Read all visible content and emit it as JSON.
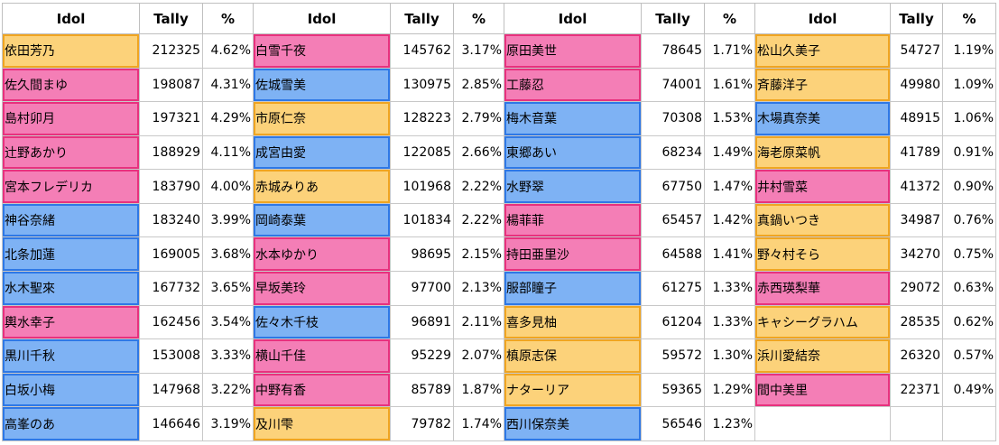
{
  "headers": {
    "idol": "Idol",
    "tally": "Tally",
    "pct": "%"
  },
  "colors": {
    "cute": "#f47eb6",
    "cool": "#7eb2f4",
    "passion": "#fcd27a"
  },
  "columns": [
    [
      {
        "name": "依田芳乃",
        "tally": "212325",
        "pct": "4.62%",
        "type": "passion"
      },
      {
        "name": "佐久間まゆ",
        "tally": "198087",
        "pct": "4.31%",
        "type": "cute"
      },
      {
        "name": "島村卯月",
        "tally": "197321",
        "pct": "4.29%",
        "type": "cute"
      },
      {
        "name": "辻野あかり",
        "tally": "188929",
        "pct": "4.11%",
        "type": "cute"
      },
      {
        "name": "宮本フレデリカ",
        "tally": "183790",
        "pct": "4.00%",
        "type": "cute"
      },
      {
        "name": "神谷奈緒",
        "tally": "183240",
        "pct": "3.99%",
        "type": "cool"
      },
      {
        "name": "北条加蓮",
        "tally": "169005",
        "pct": "3.68%",
        "type": "cool"
      },
      {
        "name": "水木聖來",
        "tally": "167732",
        "pct": "3.65%",
        "type": "cool"
      },
      {
        "name": "輿水幸子",
        "tally": "162456",
        "pct": "3.54%",
        "type": "cute"
      },
      {
        "name": "黒川千秋",
        "tally": "153008",
        "pct": "3.33%",
        "type": "cool"
      },
      {
        "name": "白坂小梅",
        "tally": "147968",
        "pct": "3.22%",
        "type": "cool"
      },
      {
        "name": "高峯のあ",
        "tally": "146646",
        "pct": "3.19%",
        "type": "cool"
      }
    ],
    [
      {
        "name": "白雪千夜",
        "tally": "145762",
        "pct": "3.17%",
        "type": "cute"
      },
      {
        "name": "佐城雪美",
        "tally": "130975",
        "pct": "2.85%",
        "type": "cool"
      },
      {
        "name": "市原仁奈",
        "tally": "128223",
        "pct": "2.79%",
        "type": "passion"
      },
      {
        "name": "成宮由愛",
        "tally": "122085",
        "pct": "2.66%",
        "type": "cool"
      },
      {
        "name": "赤城みりあ",
        "tally": "101968",
        "pct": "2.22%",
        "type": "passion"
      },
      {
        "name": "岡崎泰葉",
        "tally": "101834",
        "pct": "2.22%",
        "type": "cool"
      },
      {
        "name": "水本ゆかり",
        "tally": "98695",
        "pct": "2.15%",
        "type": "cute"
      },
      {
        "name": "早坂美玲",
        "tally": "97700",
        "pct": "2.13%",
        "type": "cute"
      },
      {
        "name": "佐々木千枝",
        "tally": "96891",
        "pct": "2.11%",
        "type": "cool"
      },
      {
        "name": "横山千佳",
        "tally": "95229",
        "pct": "2.07%",
        "type": "cute"
      },
      {
        "name": "中野有香",
        "tally": "85789",
        "pct": "1.87%",
        "type": "cute"
      },
      {
        "name": "及川雫",
        "tally": "79782",
        "pct": "1.74%",
        "type": "passion"
      }
    ],
    [
      {
        "name": "原田美世",
        "tally": "78645",
        "pct": "1.71%",
        "type": "cute"
      },
      {
        "name": "工藤忍",
        "tally": "74001",
        "pct": "1.61%",
        "type": "cute"
      },
      {
        "name": "梅木音葉",
        "tally": "70308",
        "pct": "1.53%",
        "type": "cool"
      },
      {
        "name": "東郷あい",
        "tally": "68234",
        "pct": "1.49%",
        "type": "cool"
      },
      {
        "name": "水野翠",
        "tally": "67750",
        "pct": "1.47%",
        "type": "cool"
      },
      {
        "name": "楊菲菲",
        "tally": "65457",
        "pct": "1.42%",
        "type": "cute"
      },
      {
        "name": "持田亜里沙",
        "tally": "64588",
        "pct": "1.41%",
        "type": "cute"
      },
      {
        "name": "服部瞳子",
        "tally": "61275",
        "pct": "1.33%",
        "type": "cool"
      },
      {
        "name": "喜多見柚",
        "tally": "61204",
        "pct": "1.33%",
        "type": "passion"
      },
      {
        "name": "槙原志保",
        "tally": "59572",
        "pct": "1.30%",
        "type": "passion"
      },
      {
        "name": "ナターリア",
        "tally": "59365",
        "pct": "1.29%",
        "type": "passion"
      },
      {
        "name": "西川保奈美",
        "tally": "56546",
        "pct": "1.23%",
        "type": "cool"
      }
    ],
    [
      {
        "name": "松山久美子",
        "tally": "54727",
        "pct": "1.19%",
        "type": "passion"
      },
      {
        "name": "斉藤洋子",
        "tally": "49980",
        "pct": "1.09%",
        "type": "passion"
      },
      {
        "name": "木場真奈美",
        "tally": "48915",
        "pct": "1.06%",
        "type": "cool"
      },
      {
        "name": "海老原菜帆",
        "tally": "41789",
        "pct": "0.91%",
        "type": "passion"
      },
      {
        "name": "井村雪菜",
        "tally": "41372",
        "pct": "0.90%",
        "type": "cute"
      },
      {
        "name": "真鍋いつき",
        "tally": "34987",
        "pct": "0.76%",
        "type": "passion"
      },
      {
        "name": "野々村そら",
        "tally": "34270",
        "pct": "0.75%",
        "type": "passion"
      },
      {
        "name": "赤西瑛梨華",
        "tally": "29072",
        "pct": "0.63%",
        "type": "cute"
      },
      {
        "name": "キャシーグラハム",
        "tally": "28535",
        "pct": "0.62%",
        "type": "passion"
      },
      {
        "name": "浜川愛結奈",
        "tally": "26320",
        "pct": "0.57%",
        "type": "passion"
      },
      {
        "name": "間中美里",
        "tally": "22371",
        "pct": "0.49%",
        "type": "cute"
      },
      {
        "name": "",
        "tally": "",
        "pct": "",
        "type": "empty"
      }
    ]
  ]
}
